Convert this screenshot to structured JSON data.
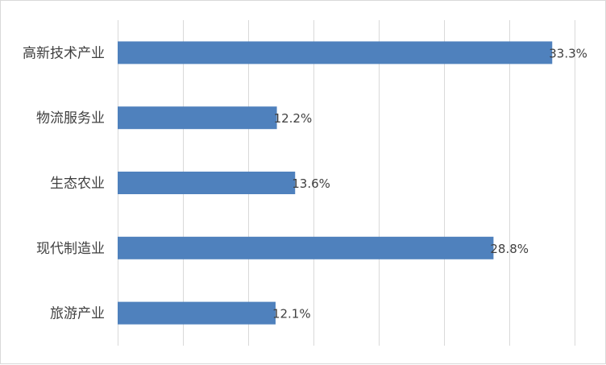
{
  "chart_data": {
    "type": "bar",
    "orientation": "horizontal",
    "title": "",
    "xlabel": "",
    "ylabel": "",
    "categories": [
      "高新技术产业",
      "物流服务业",
      "生态农业",
      "现代制造业",
      "旅游产业"
    ],
    "values": [
      33.3,
      12.2,
      13.6,
      28.8,
      12.1
    ],
    "data_labels": [
      "33.3%",
      "12.2%",
      "13.6%",
      "28.8%",
      "12.1%"
    ],
    "xlim": [
      0,
      36
    ],
    "x_gridline_step": 5,
    "grid": true,
    "legend": "none",
    "bar_color": "#4f81bd",
    "gridline_color": "#d9d9d9",
    "label_color": "#404040"
  }
}
